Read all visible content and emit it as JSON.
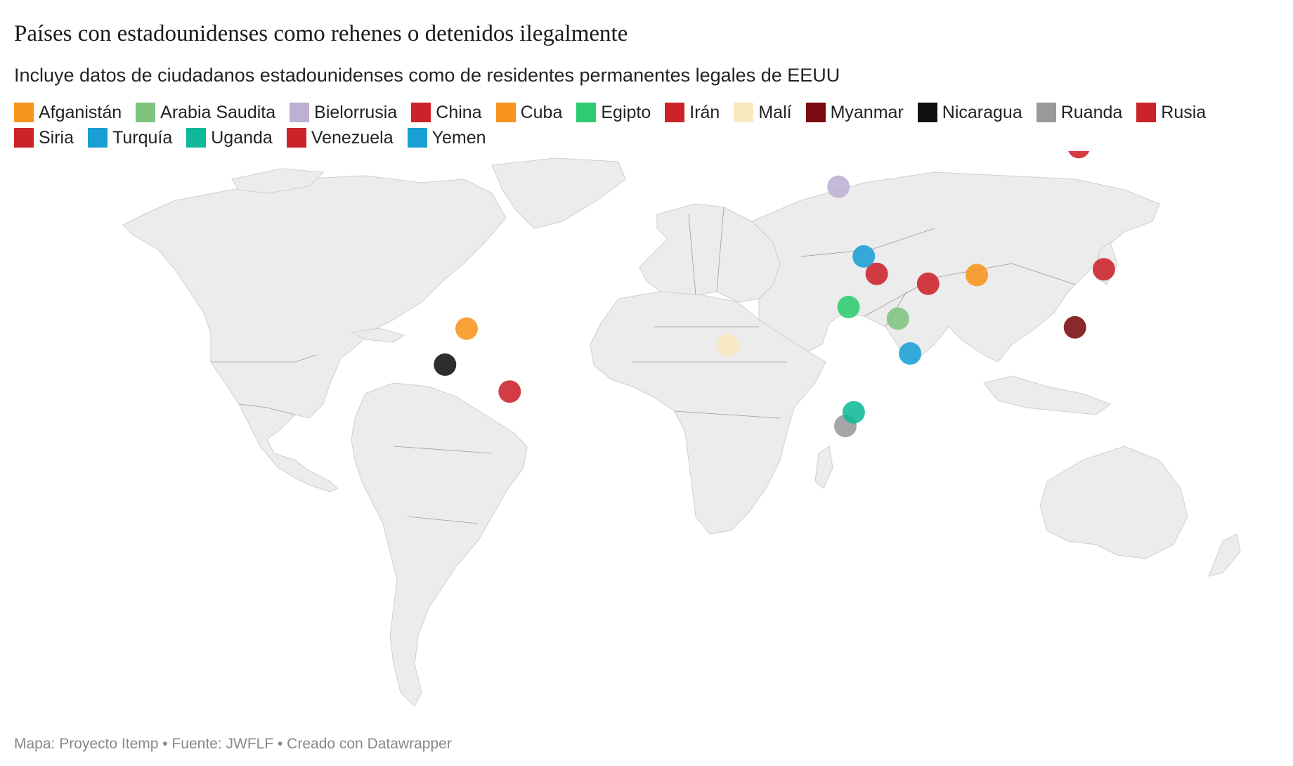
{
  "title": "Países con estadounidenses como rehenes o detenidos ilegalmente",
  "subtitle": "Incluye datos de ciudadanos estadounidenses como de residentes permanentes legales de EEUU",
  "legend": [
    {
      "label": "Afganistán",
      "color": "#f7941d"
    },
    {
      "label": "Arabia Saudita",
      "color": "#7ec47e"
    },
    {
      "label": "Bielorrusia",
      "color": "#bdb0d4"
    },
    {
      "label": "China",
      "color": "#cc2229"
    },
    {
      "label": "Cuba",
      "color": "#f7941d"
    },
    {
      "label": "Egipto",
      "color": "#2ecc71"
    },
    {
      "label": "Irán",
      "color": "#cc2229"
    },
    {
      "label": "Malí",
      "color": "#f7e8bd"
    },
    {
      "label": "Myanmar",
      "color": "#7a0a0f"
    },
    {
      "label": "Nicaragua",
      "color": "#111111"
    },
    {
      "label": "Ruanda",
      "color": "#999999"
    },
    {
      "label": "Rusia",
      "color": "#cc2229"
    },
    {
      "label": "Siria",
      "color": "#cc2229"
    },
    {
      "label": "Turquía",
      "color": "#1a9fd4"
    },
    {
      "label": "Uganda",
      "color": "#10b89a"
    },
    {
      "label": "Venezuela",
      "color": "#cc2229"
    },
    {
      "label": "Yemen",
      "color": "#1a9fd4"
    }
  ],
  "markers": [
    {
      "country": "Afganistán",
      "lon": 67.7,
      "lat": 34.5,
      "color": "#f7941d"
    },
    {
      "country": "Arabia Saudita",
      "lon": 45.0,
      "lat": 24.0,
      "color": "#7ec47e"
    },
    {
      "country": "Bielorrusia",
      "lon": 27.9,
      "lat": 53.7,
      "color": "#bdb0d4"
    },
    {
      "country": "China",
      "lon": 104.2,
      "lat": 35.9,
      "color": "#cc2229"
    },
    {
      "country": "Cuba",
      "lon": -79.0,
      "lat": 21.6,
      "color": "#f7941d"
    },
    {
      "country": "Egipto",
      "lon": 30.8,
      "lat": 26.8,
      "color": "#2ecc71"
    },
    {
      "country": "Irán",
      "lon": 53.7,
      "lat": 32.4,
      "color": "#cc2229"
    },
    {
      "country": "Malí",
      "lon": -3.9,
      "lat": 17.6,
      "color": "#f7e8bd"
    },
    {
      "country": "Myanmar",
      "lon": 95.9,
      "lat": 21.9,
      "color": "#7a0a0f"
    },
    {
      "country": "Nicaragua",
      "lon": -85.2,
      "lat": 12.9,
      "color": "#111111"
    },
    {
      "country": "Ruanda",
      "lon": 29.9,
      "lat": -1.9,
      "color": "#999999"
    },
    {
      "country": "Rusia",
      "lon": 97.0,
      "lat": 62.0,
      "color": "#cc2229"
    },
    {
      "country": "Siria",
      "lon": 38.9,
      "lat": 34.8,
      "color": "#cc2229"
    },
    {
      "country": "Turquía",
      "lon": 35.2,
      "lat": 39.0,
      "color": "#1a9fd4"
    },
    {
      "country": "Uganda",
      "lon": 32.3,
      "lat": 1.4,
      "color": "#10b89a"
    },
    {
      "country": "Venezuela",
      "lon": -66.6,
      "lat": 6.4,
      "color": "#cc2229"
    },
    {
      "country": "Yemen",
      "lon": 48.5,
      "lat": 15.6,
      "color": "#1a9fd4"
    }
  ],
  "footer": "Mapa: Proyecto Itemp • Fuente: JWFLF • Creado con Datawrapper"
}
